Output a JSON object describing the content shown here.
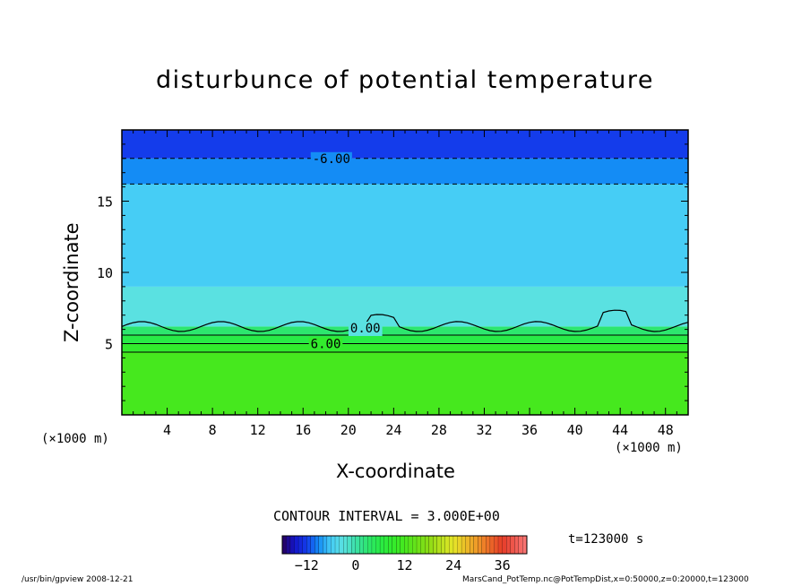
{
  "chart_data": {
    "type": "heatmap",
    "title": "disturbunce of potential temperature",
    "xlabel": "X-coordinate",
    "ylabel": "Z-coordinate",
    "x_unit": "(×1000 m)",
    "xlim": [
      0,
      50
    ],
    "ylim": [
      0,
      20
    ],
    "x_ticks": [
      4,
      8,
      12,
      16,
      20,
      24,
      28,
      32,
      36,
      40,
      44,
      48
    ],
    "y_ticks": [
      5,
      10,
      15
    ],
    "contour_labels": [
      {
        "text": "-6.00",
        "x": 18.5,
        "z": 18.0
      },
      {
        "text": "0.00",
        "x": 21.5,
        "z": 6.1
      },
      {
        "text": "6.00",
        "x": 18.0,
        "z": 5.0
      }
    ],
    "bands": [
      {
        "z_min": 0.0,
        "z_max": 4.4,
        "value": 12
      },
      {
        "z_min": 4.4,
        "z_max": 5.0,
        "value": 9
      },
      {
        "z_min": 5.0,
        "z_max": 5.6,
        "value": 6
      },
      {
        "z_min": 5.6,
        "z_max": 6.2,
        "value": 3
      },
      {
        "z_min": 6.2,
        "z_max": 9.0,
        "value": -3
      },
      {
        "z_min": 9.0,
        "z_max": 16.2,
        "value": -6
      },
      {
        "z_min": 16.2,
        "z_max": 18.0,
        "value": -9
      },
      {
        "z_min": 18.0,
        "z_max": 20.0,
        "value": -12
      }
    ],
    "contour_interval_text": "CONTOUR INTERVAL = 3.000E+00",
    "colorbar": {
      "min": -18,
      "max": 42,
      "tick_labels": [
        -12,
        0,
        12,
        24,
        36
      ]
    },
    "time_text": "t=123000 s"
  },
  "footer": {
    "left": "/usr/bin/gpview   2008-12-21",
    "right": "MarsCand_PotTemp.nc@PotTempDist,x=0:50000,z=0:20000,t=123000"
  }
}
